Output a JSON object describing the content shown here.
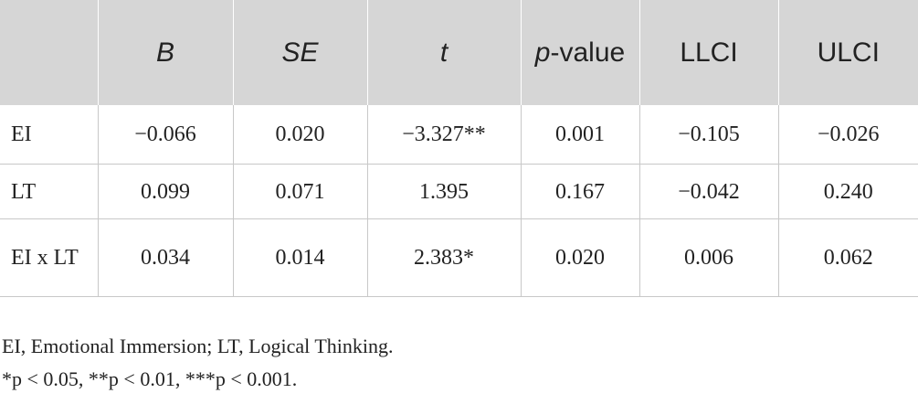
{
  "table": {
    "header": [
      "",
      "B",
      "SE",
      "t",
      [
        "p",
        "-value"
      ],
      "LLCI",
      "ULCI"
    ],
    "rows": [
      [
        "EI",
        "−0.066",
        "0.020",
        "−3.327**",
        "0.001",
        "−0.105",
        "−0.026"
      ],
      [
        "LT",
        "0.099",
        "0.071",
        "1.395",
        "0.167",
        "−0.042",
        "0.240"
      ],
      [
        "EI x LT",
        "0.034",
        "0.014",
        "2.383*",
        "0.020",
        "0.006",
        "0.062"
      ]
    ]
  },
  "footnotes": [
    "EI, Emotional Immersion; LT, Logical Thinking.",
    "*p < 0.05, **p < 0.01, ***p < 0.001."
  ]
}
